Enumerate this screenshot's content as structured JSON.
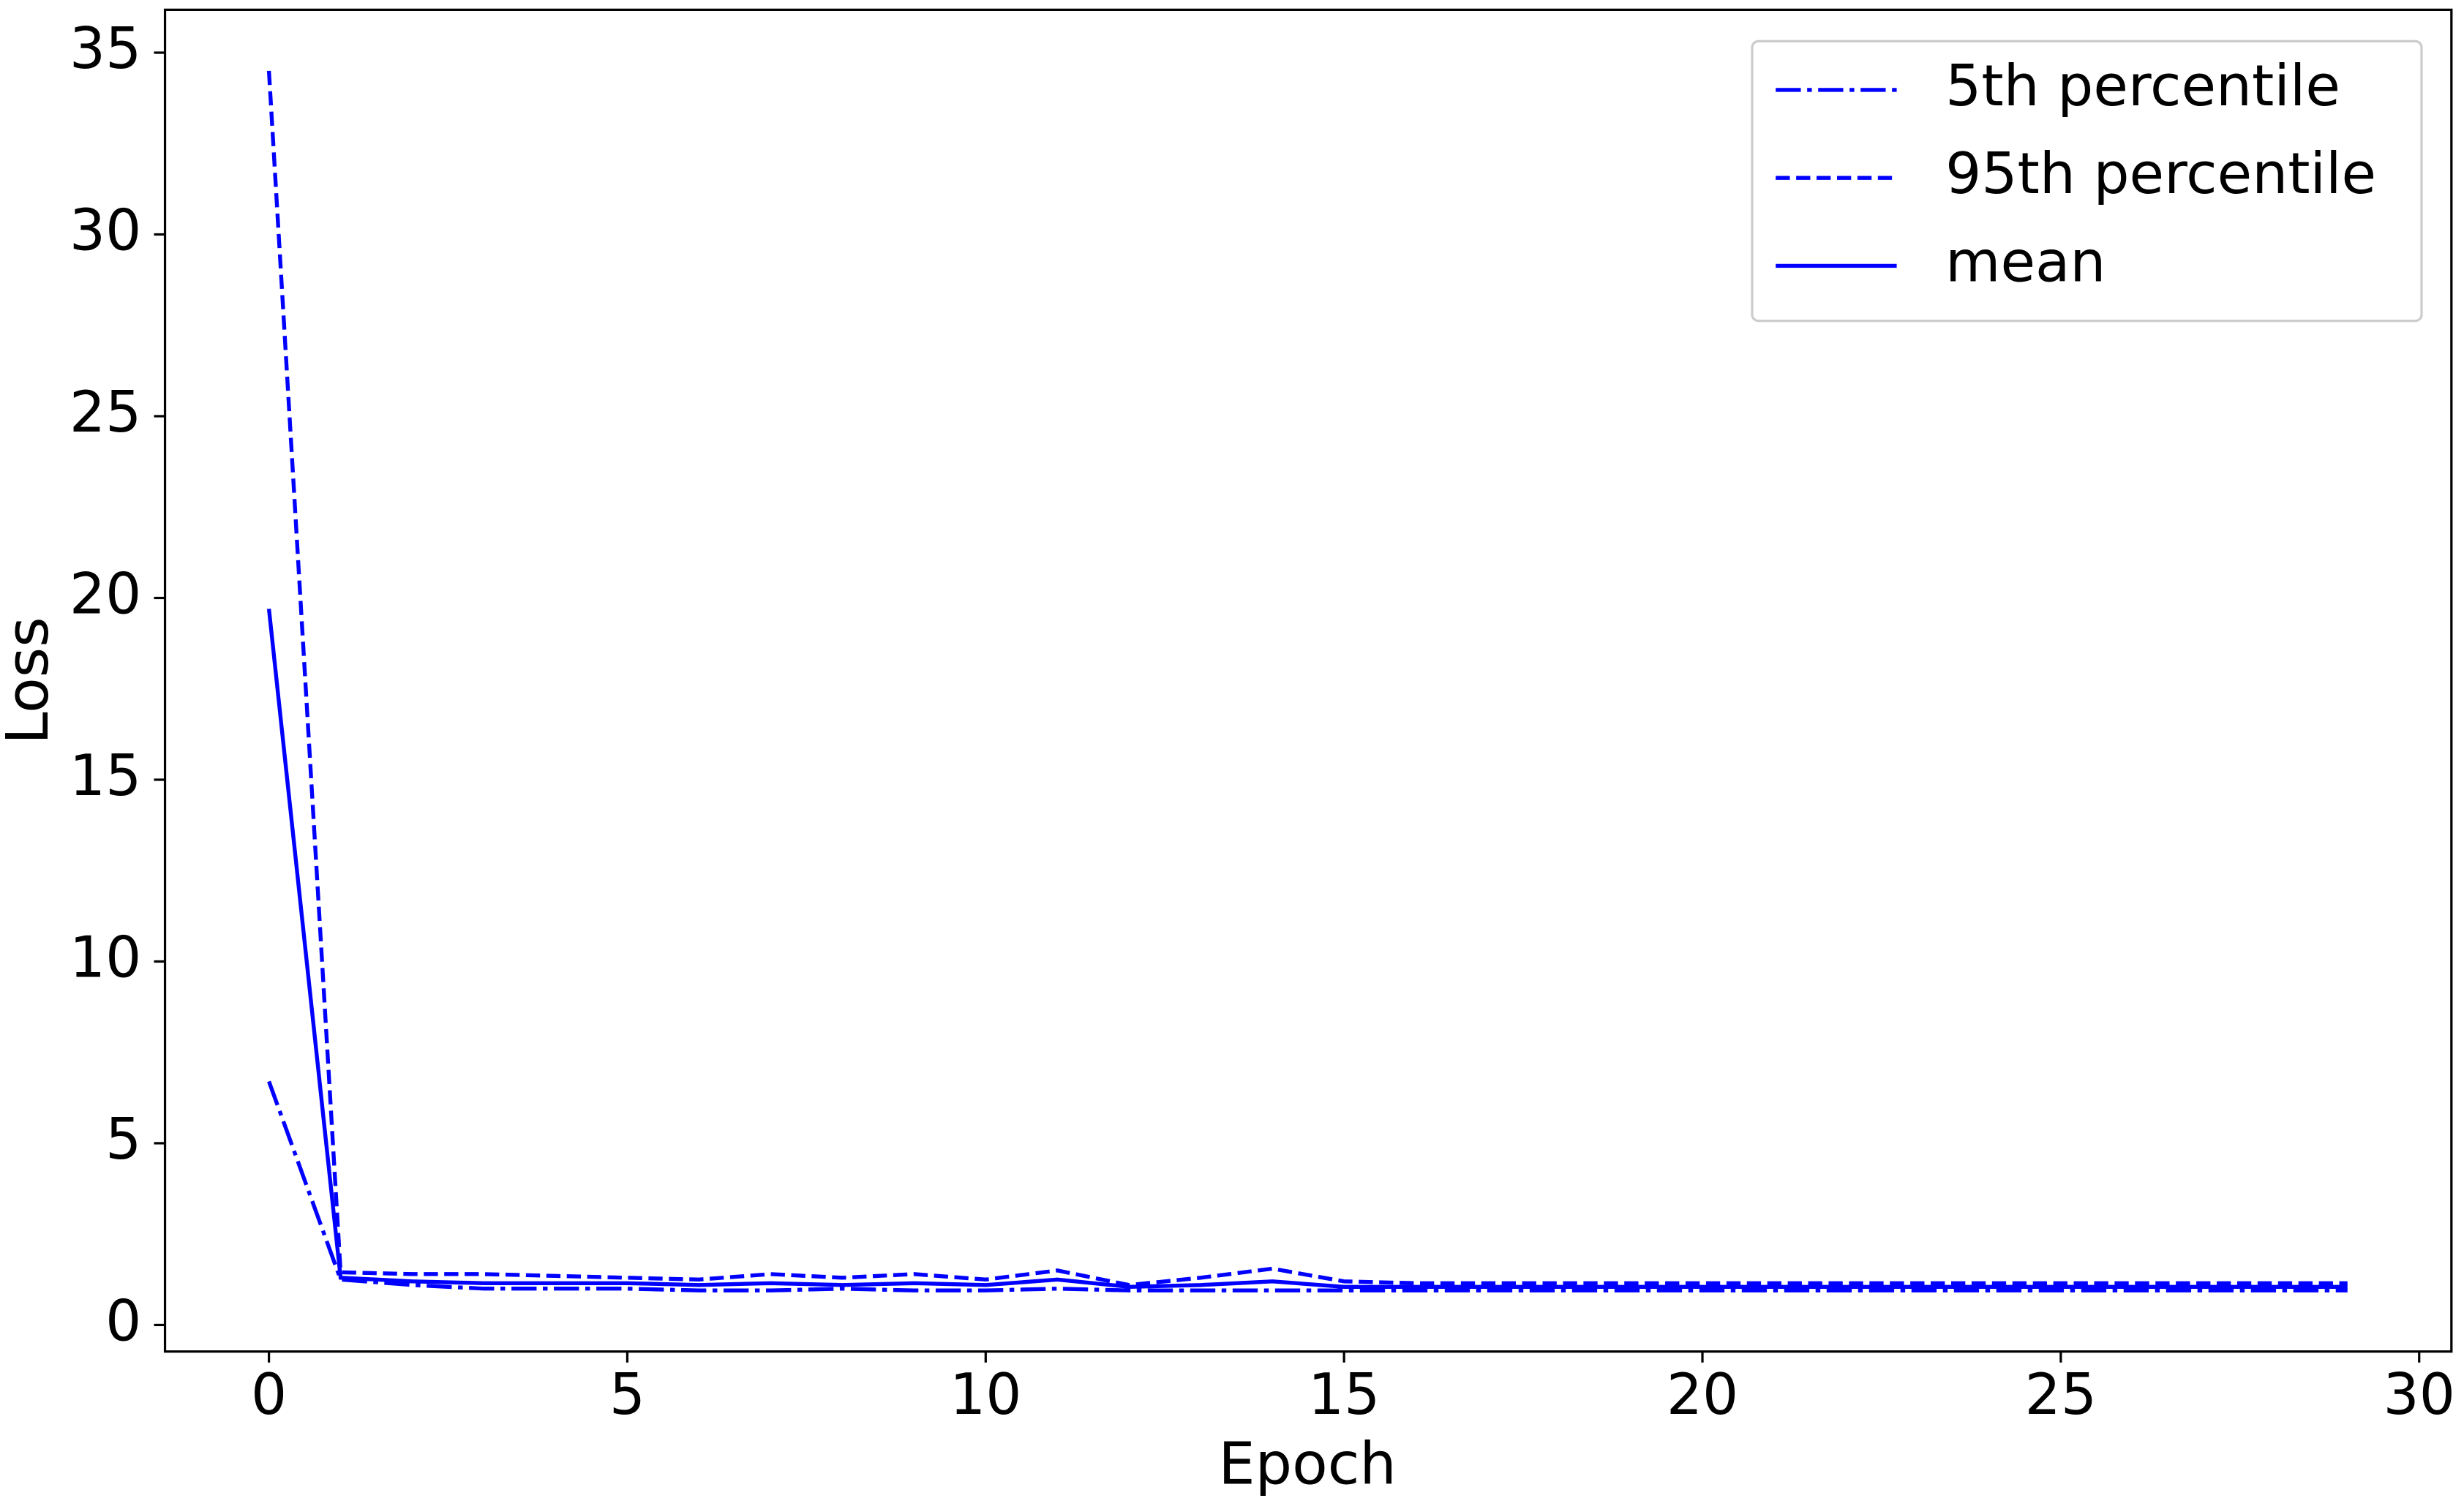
{
  "chart_data": {
    "type": "line",
    "x_label": "Epoch",
    "y_label": "Loss",
    "x": [
      0,
      1,
      2,
      3,
      4,
      5,
      6,
      7,
      8,
      9,
      10,
      11,
      12,
      13,
      14,
      15,
      16,
      17,
      18,
      19,
      20,
      21,
      22,
      23,
      24,
      25,
      26,
      27,
      28,
      29
    ],
    "series": [
      {
        "name": "5th percentile",
        "color": "#0000ff",
        "linestyle": "dashdot",
        "values": [
          6.7,
          1.25,
          1.1,
          1.0,
          1.0,
          1.0,
          0.95,
          0.95,
          1.0,
          0.95,
          0.95,
          1.0,
          0.95,
          0.95,
          0.95,
          0.95,
          0.95,
          0.95,
          0.95,
          0.95,
          0.95,
          0.95,
          0.95,
          0.95,
          0.95,
          0.95,
          0.95,
          0.95,
          0.95,
          0.95
        ]
      },
      {
        "name": "95th percentile",
        "color": "#0000ff",
        "linestyle": "dashed",
        "values": [
          34.5,
          1.45,
          1.4,
          1.4,
          1.35,
          1.3,
          1.25,
          1.4,
          1.3,
          1.4,
          1.25,
          1.5,
          1.1,
          1.3,
          1.55,
          1.2,
          1.15,
          1.15,
          1.15,
          1.15,
          1.15,
          1.15,
          1.15,
          1.15,
          1.15,
          1.15,
          1.15,
          1.15,
          1.15,
          1.15
        ]
      },
      {
        "name": "mean",
        "color": "#0000ff",
        "linestyle": "solid",
        "values": [
          19.7,
          1.3,
          1.2,
          1.15,
          1.15,
          1.15,
          1.1,
          1.15,
          1.1,
          1.15,
          1.1,
          1.25,
          1.05,
          1.1,
          1.2,
          1.05,
          1.05,
          1.05,
          1.05,
          1.05,
          1.05,
          1.05,
          1.05,
          1.05,
          1.05,
          1.05,
          1.05,
          1.05,
          1.05,
          1.05
        ]
      }
    ],
    "xlim": [
      -1.45,
      30.45
    ],
    "xticks": [
      0,
      5,
      10,
      15,
      20,
      25,
      30
    ],
    "ylim": [
      -0.73,
      36.18
    ],
    "yticks": [
      0,
      5,
      10,
      15,
      20,
      25,
      30,
      35
    ],
    "grid": false,
    "legend": "upper right"
  }
}
